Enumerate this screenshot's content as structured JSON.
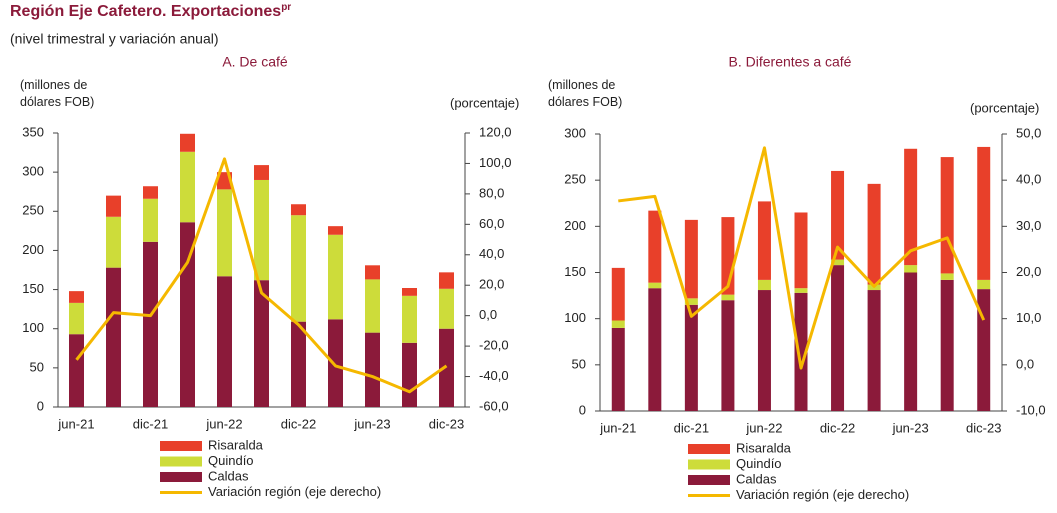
{
  "title": "Región Eje Cafetero. Exportaciones",
  "title_sup": "pr",
  "subtitle": "(nivel trimestral y variación anual)",
  "chart_data": [
    {
      "type": "bar",
      "stacked": true,
      "title": "A. De café",
      "ylabel": "(millones de dólares FOB)",
      "y2label": "(porcentaje)",
      "categories": [
        "jun-21",
        null,
        "dic-21",
        null,
        "jun-22",
        null,
        "dic-22",
        null,
        "jun-23",
        null,
        "dic-23"
      ],
      "series": [
        {
          "name": "Risaralda",
          "color": "#e8402a",
          "values": [
            15,
            27,
            16,
            23,
            22,
            19,
            14,
            11,
            18,
            10,
            21
          ]
        },
        {
          "name": "Quindío",
          "color": "#cddc3a",
          "values": [
            40,
            65,
            55,
            90,
            111,
            128,
            136,
            108,
            68,
            60,
            51
          ]
        },
        {
          "name": "Caldas",
          "color": "#8b1a3a",
          "values": [
            93,
            178,
            211,
            236,
            167,
            162,
            109,
            112,
            95,
            82,
            100
          ]
        },
        {
          "name": "Variación región (eje derecho)",
          "color": "#f5b800",
          "type": "line",
          "axis": "y2",
          "values": [
            -29,
            2,
            0,
            35,
            103,
            15,
            -6,
            -33,
            -40,
            -50,
            -33
          ]
        }
      ],
      "ylim": [
        0,
        350
      ],
      "yticks": [
        0,
        50,
        100,
        150,
        200,
        250,
        300,
        350
      ],
      "y2lim": [
        -60,
        120
      ],
      "y2ticks": [
        {
          "value": -60,
          "label": "-60,0"
        },
        {
          "value": -40,
          "label": "-40,0"
        },
        {
          "value": -20,
          "label": "-20,0"
        },
        {
          "value": 0,
          "label": "0,0"
        },
        {
          "value": 20,
          "label": "20,0"
        },
        {
          "value": 40,
          "label": "40,0"
        },
        {
          "value": 60,
          "label": "60,0"
        },
        {
          "value": 80,
          "label": "80,0"
        },
        {
          "value": 100,
          "label": "100,0"
        },
        {
          "value": 120,
          "label": "120,0"
        }
      ]
    },
    {
      "type": "bar",
      "stacked": true,
      "title": "B. Diferentes a café",
      "ylabel": "(millones de dólares FOB)",
      "y2label": "(porcentaje)",
      "categories": [
        "jun-21",
        null,
        "dic-21",
        null,
        "jun-22",
        null,
        "dic-22",
        null,
        "jun-23",
        null,
        "dic-23"
      ],
      "series": [
        {
          "name": "Risaralda",
          "color": "#e8402a",
          "values": [
            57,
            78,
            85,
            84,
            85,
            82,
            96,
            109,
            126,
            126,
            144
          ]
        },
        {
          "name": "Quindío",
          "color": "#cddc3a",
          "values": [
            8,
            6,
            7,
            6,
            11,
            5,
            6,
            6,
            8,
            7,
            10
          ]
        },
        {
          "name": "Caldas",
          "color": "#8b1a3a",
          "values": [
            90,
            133,
            115,
            120,
            131,
            128,
            158,
            131,
            150,
            142,
            132
          ]
        },
        {
          "name": "Variación región (eje derecho)",
          "color": "#f5b800",
          "type": "line",
          "axis": "y2",
          "values": [
            35.5,
            36.5,
            10.5,
            17,
            47,
            -0.7,
            25.5,
            17,
            24.7,
            27.5,
            9.7
          ]
        }
      ],
      "ylim": [
        0,
        300
      ],
      "yticks": [
        0,
        50,
        100,
        150,
        200,
        250,
        300
      ],
      "y2lim": [
        -10,
        50
      ],
      "y2ticks": [
        {
          "value": -10,
          "label": "-10,0"
        },
        {
          "value": 0,
          "label": "0,0"
        },
        {
          "value": 10,
          "label": "10,0"
        },
        {
          "value": 20,
          "label": "20,0"
        },
        {
          "value": 30,
          "label": "30,0"
        },
        {
          "value": 40,
          "label": "40,0"
        },
        {
          "value": 50,
          "label": "50,0"
        }
      ]
    }
  ]
}
